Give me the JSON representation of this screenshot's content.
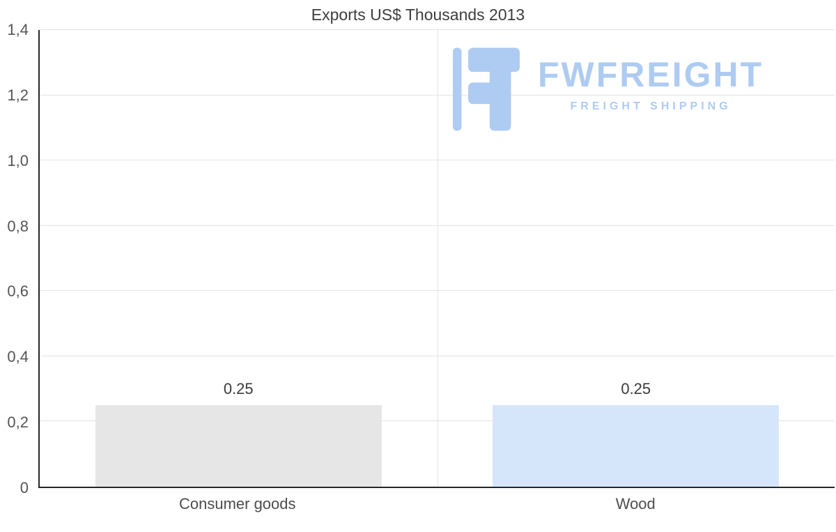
{
  "watermark": {
    "brand": "FWFREIGHT",
    "tagline": "FREIGHT SHIPPING",
    "color": "#aecbf2"
  },
  "chart_data": {
    "type": "bar",
    "title": "Exports US$ Thousands 2013",
    "categories": [
      "Consumer goods",
      "Wood"
    ],
    "values": [
      0.25,
      0.25
    ],
    "value_labels": [
      "0.25",
      "0.25"
    ],
    "bar_colors": [
      "#e6e6e6",
      "#d5e6fa"
    ],
    "xlabel": "",
    "ylabel": "",
    "ylim": [
      0,
      1.4
    ],
    "yticks": [
      {
        "value": 0,
        "label": "0"
      },
      {
        "value": 0.2,
        "label": "0,2"
      },
      {
        "value": 0.4,
        "label": "0,4"
      },
      {
        "value": 0.6,
        "label": "0,6"
      },
      {
        "value": 0.8,
        "label": "0,8"
      },
      {
        "value": 1.0,
        "label": "1,0"
      },
      {
        "value": 1.2,
        "label": "1,2"
      },
      {
        "value": 1.4,
        "label": "1,4"
      }
    ],
    "grid": "horizontal lines at each y tick, one vertical line at center",
    "legend": "none"
  }
}
